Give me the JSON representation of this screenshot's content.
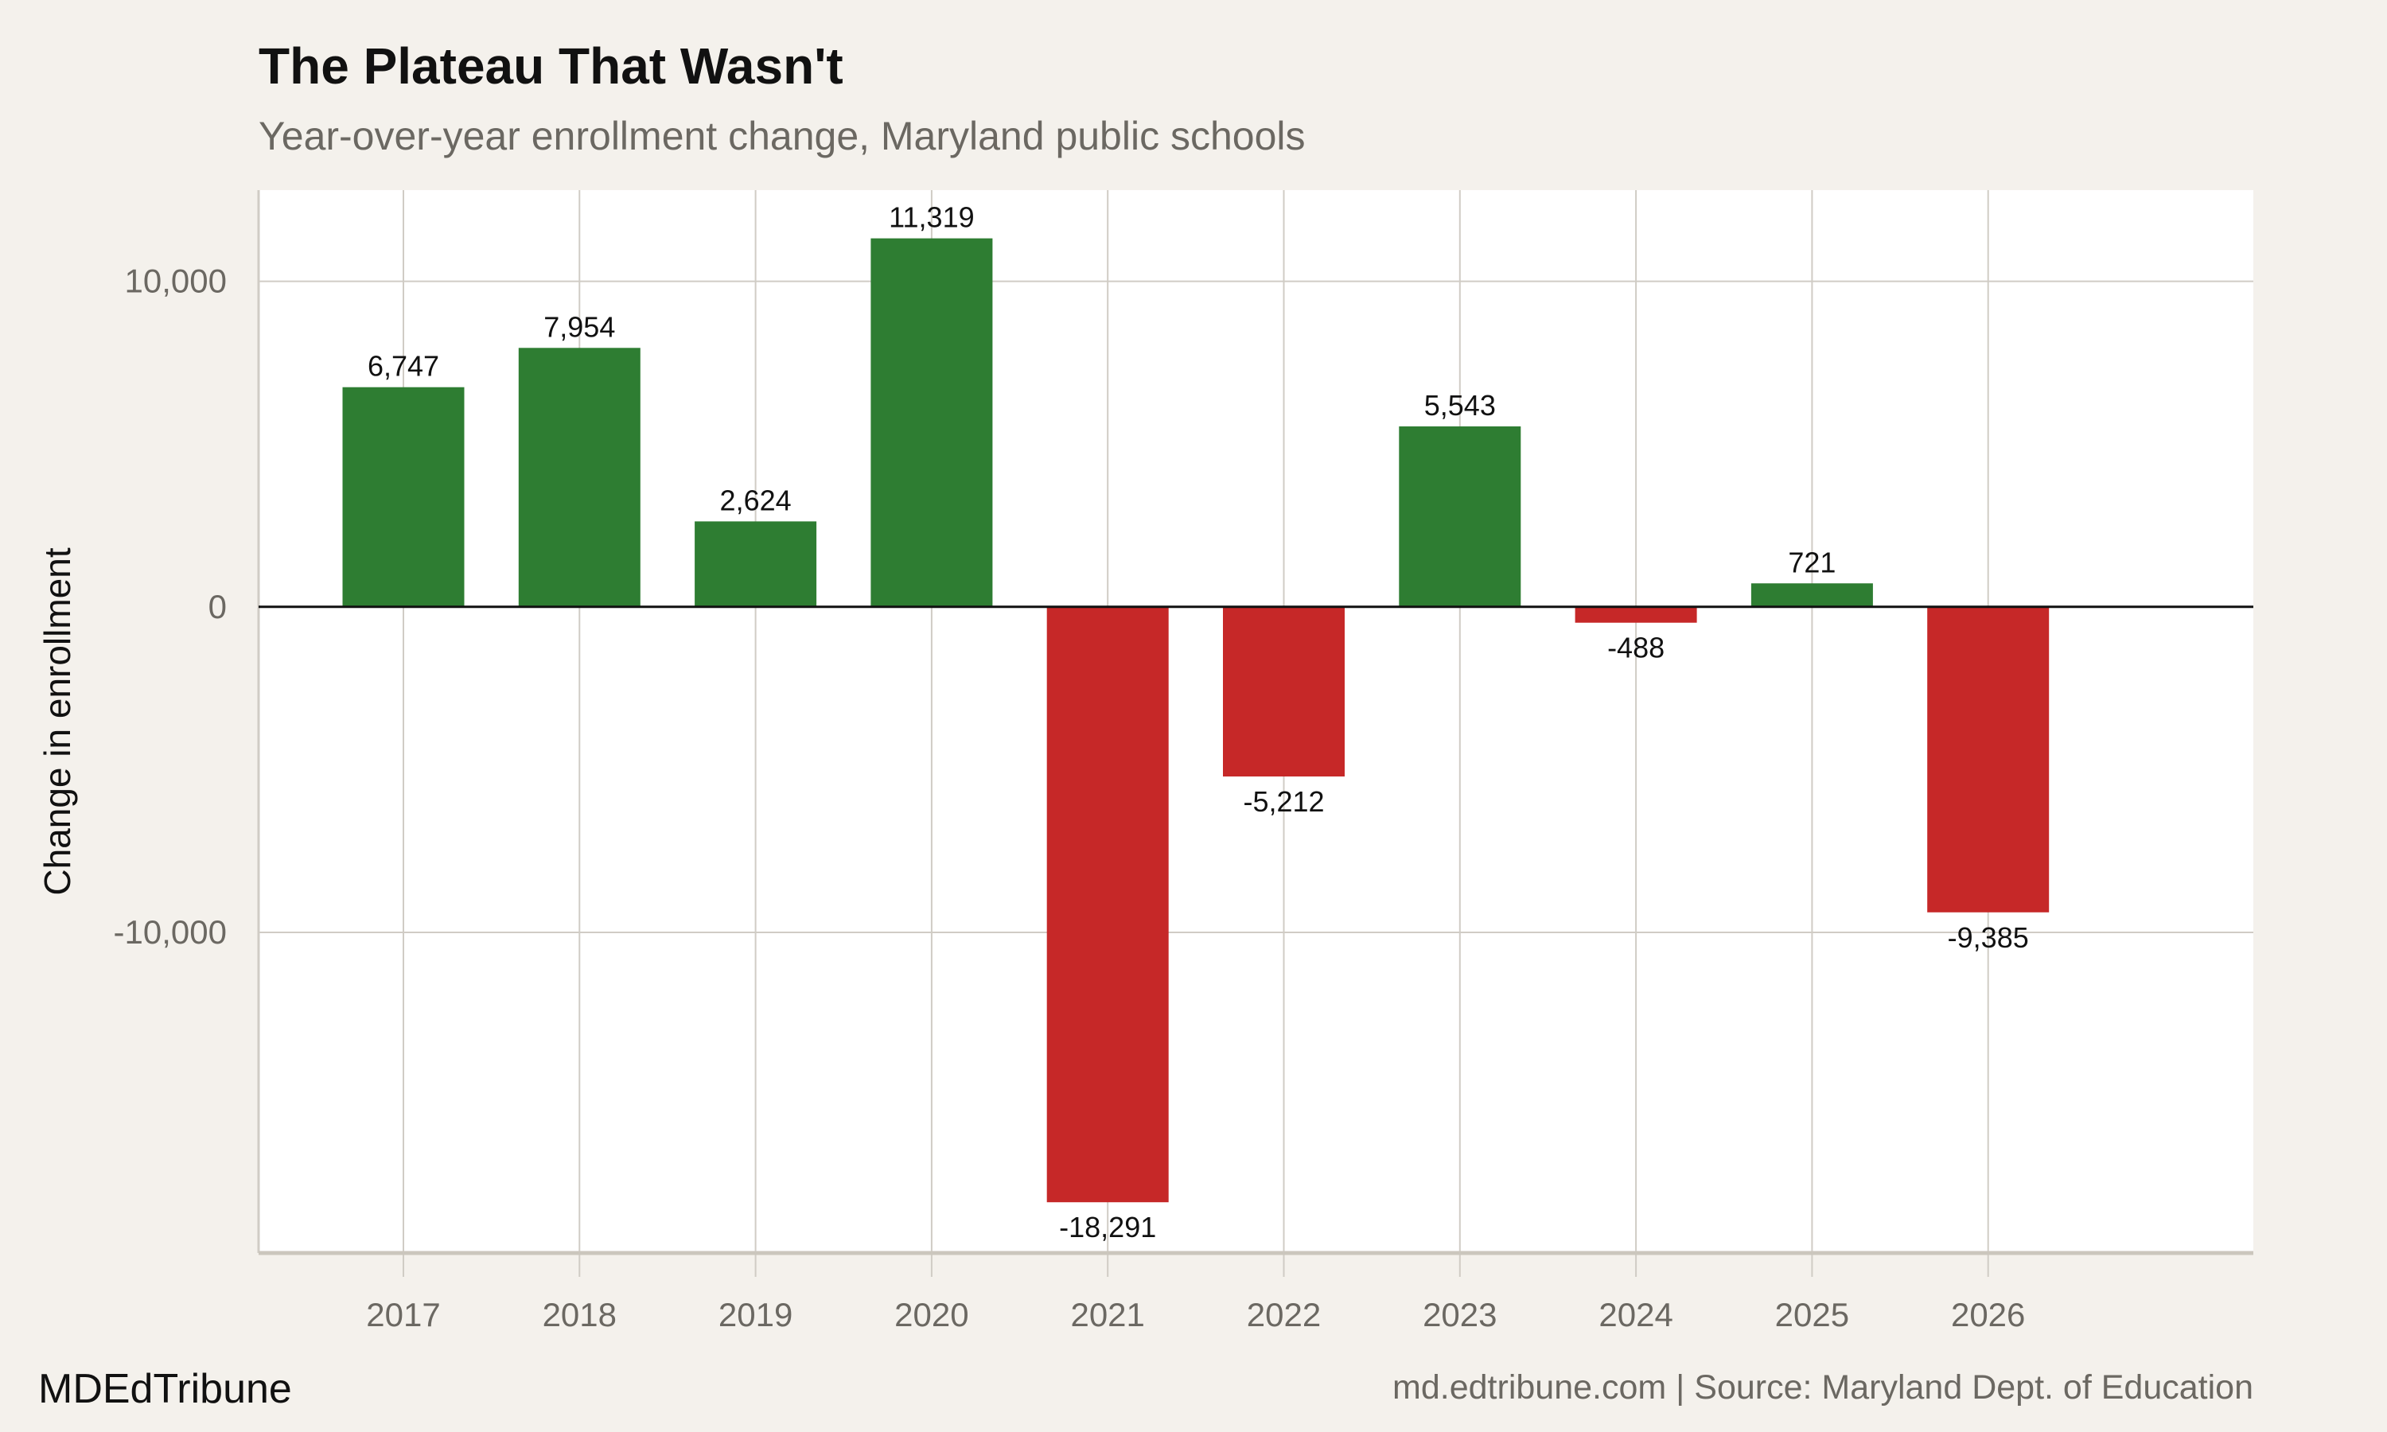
{
  "title": "The Plateau That Wasn't",
  "subtitle": "Year-over-year enrollment change, Maryland public schools",
  "footer": {
    "brand": "MDEdTribune",
    "source": "md.edtribune.com | Source: Maryland Dept. of Education"
  },
  "chart_data": {
    "type": "bar",
    "title": "The Plateau That Wasn't",
    "subtitle": "Year-over-year enrollment change, Maryland public schools",
    "xlabel": "",
    "ylabel": "Change in enrollment",
    "categories": [
      "2017",
      "2018",
      "2019",
      "2020",
      "2021",
      "2022",
      "2023",
      "2024",
      "2025",
      "2026"
    ],
    "values": [
      6747,
      7954,
      2624,
      11319,
      -18291,
      -5212,
      5543,
      -488,
      721,
      -9385
    ],
    "data_labels": [
      "6,747",
      "7,954",
      "2,624",
      "11,319",
      "-18,291",
      "-5,212",
      "5,543",
      "-488",
      "721",
      "-9,385"
    ],
    "yticks": [
      10000,
      0,
      -10000
    ],
    "ytick_labels": [
      "10,000",
      "0",
      "-10,000"
    ],
    "ylim": [
      -19850,
      12800
    ],
    "grid": true,
    "legend": "none",
    "colors": {
      "positive": "#2e7d32",
      "negative": "#c62828",
      "background": "#f4f1ec",
      "panel": "#ffffff",
      "grid": "#d0ccc5"
    }
  }
}
